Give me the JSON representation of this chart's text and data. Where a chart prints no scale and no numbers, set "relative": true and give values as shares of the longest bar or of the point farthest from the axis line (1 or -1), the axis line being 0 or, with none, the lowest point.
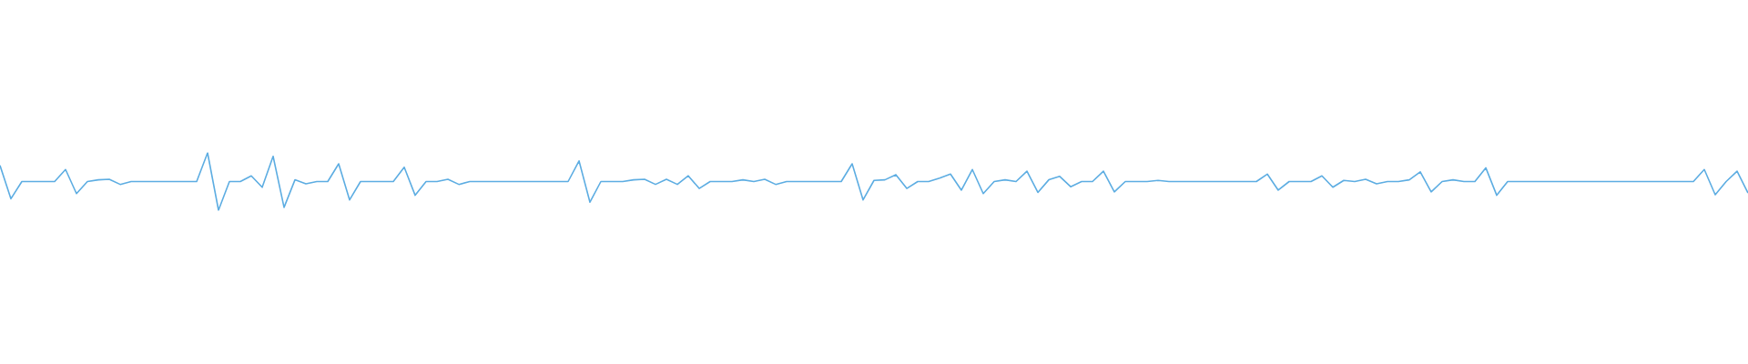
{
  "chart_data": {
    "type": "line",
    "relative": true,
    "marker": "none",
    "categories": [
      null,
      null,
      null,
      null,
      null,
      null,
      null,
      null,
      null,
      null,
      null,
      null,
      null,
      null,
      null,
      null,
      null,
      null,
      null,
      null,
      null,
      null,
      null,
      null,
      null,
      null,
      null,
      null,
      null,
      null,
      null,
      null,
      null,
      null,
      null,
      null,
      null,
      null,
      null,
      null,
      null,
      null,
      null,
      null,
      null,
      null,
      null,
      null,
      null,
      null,
      null,
      null,
      null,
      null,
      null,
      null,
      null,
      null,
      null,
      null,
      null,
      null,
      null,
      null,
      null,
      null,
      null,
      null,
      null,
      null,
      null,
      null,
      null,
      null,
      null,
      null,
      null,
      null,
      null,
      null,
      null,
      null,
      null,
      null,
      null,
      null,
      null,
      null,
      null,
      null,
      null,
      null,
      null,
      null,
      null,
      null,
      null,
      null,
      null,
      null,
      null,
      null,
      null,
      null,
      null,
      null,
      null,
      null,
      null,
      null,
      null,
      null,
      null,
      null,
      null,
      null,
      null,
      null,
      null,
      null,
      null,
      null,
      null,
      null,
      null,
      null,
      null,
      null,
      null,
      null,
      null,
      null,
      null,
      null,
      null,
      null,
      null,
      null,
      null,
      null,
      null,
      null,
      null,
      null,
      null,
      null,
      null,
      null,
      null,
      null,
      null,
      null,
      null,
      null,
      null,
      null,
      null,
      null,
      null,
      null,
      null
    ],
    "series": [
      {
        "color": "#5dade2",
        "values": [
          0.78,
          0.2,
          0.5,
          0.5,
          0.5,
          0.5,
          0.71,
          0.29,
          0.5,
          0.53,
          0.54,
          0.45,
          0.5,
          0.5,
          0.5,
          0.5,
          0.5,
          0.5,
          0.5,
          1,
          0,
          0.5,
          0.5,
          0.6,
          0.4,
          0.94,
          0.05,
          0.53,
          0.46,
          0.5,
          0.5,
          0.81,
          0.18,
          0.5,
          0.5,
          0.5,
          0.5,
          0.75,
          0.26,
          0.5,
          0.5,
          0.54,
          0.45,
          0.5,
          0.5,
          0.5,
          0.5,
          0.5,
          0.5,
          0.5,
          0.5,
          0.5,
          0.5,
          0.86,
          0.14,
          0.5,
          0.5,
          0.5,
          0.53,
          0.54,
          0.45,
          0.54,
          0.45,
          0.6,
          0.38,
          0.5,
          0.5,
          0.5,
          0.53,
          0.5,
          0.54,
          0.45,
          0.5,
          0.5,
          0.5,
          0.5,
          0.5,
          0.5,
          0.81,
          0.18,
          0.52,
          0.53,
          0.62,
          0.38,
          0.5,
          0.5,
          0.56,
          0.63,
          0.35,
          0.71,
          0.29,
          0.5,
          0.53,
          0.5,
          0.68,
          0.31,
          0.53,
          0.59,
          0.41,
          0.5,
          0.5,
          0.68,
          0.32,
          0.5,
          0.5,
          0.5,
          0.52,
          0.5,
          0.5,
          0.5,
          0.5,
          0.5,
          0.5,
          0.5,
          0.5,
          0.5,
          0.63,
          0.35,
          0.5,
          0.5,
          0.5,
          0.6,
          0.4,
          0.52,
          0.5,
          0.54,
          0.46,
          0.5,
          0.5,
          0.53,
          0.67,
          0.32,
          0.5,
          0.53,
          0.5,
          0.5,
          0.74,
          0.26,
          0.5,
          0.5,
          0.5,
          0.5,
          0.5,
          0.5,
          0.5,
          0.5,
          0.5,
          0.5,
          0.5,
          0.5,
          0.5,
          0.5,
          0.5,
          0.5,
          0.5,
          0.5,
          0.71,
          0.27,
          0.5,
          0.68,
          0.3
        ]
      }
    ]
  }
}
